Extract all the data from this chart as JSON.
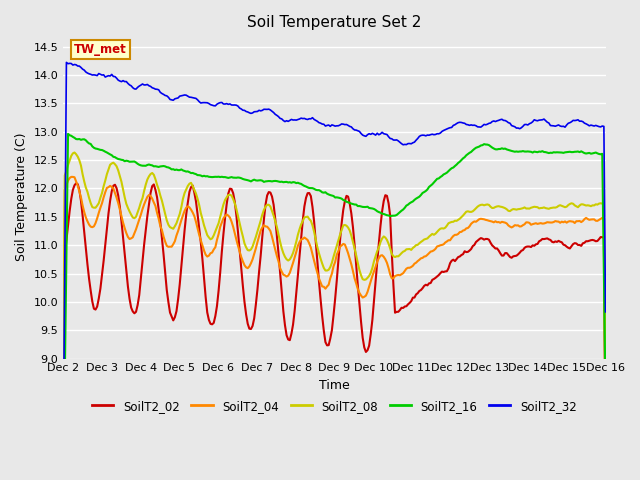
{
  "title": "Soil Temperature Set 2",
  "xlabel": "Time",
  "ylabel": "Soil Temperature (C)",
  "ylim": [
    9.0,
    14.7
  ],
  "yticks": [
    9.0,
    9.5,
    10.0,
    10.5,
    11.0,
    11.5,
    12.0,
    12.5,
    13.0,
    13.5,
    14.0,
    14.5
  ],
  "xtick_labels": [
    "Dec 2",
    "Dec 3",
    "Dec 4",
    "Dec 5",
    "Dec 6",
    "Dec 7",
    "Dec 8",
    "Dec 9",
    "Dec 10",
    "Dec 11",
    "Dec 12",
    "Dec 13",
    "Dec 14",
    "Dec 15",
    "Dec 16"
  ],
  "colors": {
    "SoilT2_02": "#cc0000",
    "SoilT2_04": "#ff8800",
    "SoilT2_08": "#cccc00",
    "SoilT2_16": "#00cc00",
    "SoilT2_32": "#0000ee"
  },
  "legend_label": "TW_met",
  "bg_color": "#e8e8e8"
}
